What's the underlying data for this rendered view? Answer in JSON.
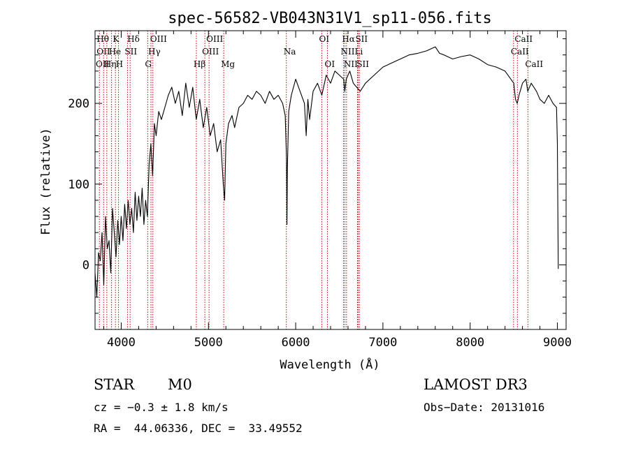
{
  "chart_data": {
    "type": "line",
    "title": "spec-56582-VB043N31V1_sp11-056.fits",
    "xlabel": "Wavelength (Å)",
    "ylabel": "Flux (relative)",
    "xlim": [
      3700,
      9100
    ],
    "ylim": [
      -80,
      290
    ],
    "x_ticks": [
      4000,
      5000,
      6000,
      7000,
      8000,
      9000
    ],
    "y_ticks": [
      0,
      100,
      200
    ],
    "grid": false,
    "series": [
      {
        "name": "flux",
        "x": [
          3700,
          3720,
          3740,
          3760,
          3780,
          3800,
          3820,
          3840,
          3860,
          3880,
          3900,
          3920,
          3940,
          3960,
          3980,
          4000,
          4020,
          4040,
          4060,
          4080,
          4100,
          4120,
          4140,
          4160,
          4180,
          4200,
          4220,
          4240,
          4260,
          4280,
          4300,
          4320,
          4340,
          4360,
          4380,
          4400,
          4430,
          4460,
          4500,
          4540,
          4580,
          4620,
          4660,
          4700,
          4740,
          4780,
          4820,
          4860,
          4900,
          4940,
          4980,
          5020,
          5060,
          5100,
          5140,
          5170,
          5185,
          5200,
          5230,
          5270,
          5300,
          5350,
          5400,
          5450,
          5500,
          5550,
          5600,
          5650,
          5700,
          5750,
          5800,
          5850,
          5880,
          5895,
          5900,
          5905,
          5920,
          5950,
          6000,
          6050,
          6100,
          6120,
          6140,
          6160,
          6200,
          6250,
          6300,
          6350,
          6400,
          6450,
          6500,
          6550,
          6563,
          6580,
          6620,
          6660,
          6700,
          6740,
          6800,
          6900,
          7000,
          7100,
          7200,
          7300,
          7400,
          7500,
          7600,
          7650,
          7700,
          7800,
          7900,
          8000,
          8100,
          8200,
          8300,
          8400,
          8500,
          8520,
          8540,
          8560,
          8600,
          8640,
          8660,
          8700,
          8760,
          8800,
          8850,
          8900,
          8950,
          8990,
          9000,
          9010
        ],
        "y": [
          -10,
          -40,
          15,
          5,
          40,
          -25,
          60,
          20,
          30,
          -10,
          70,
          40,
          10,
          55,
          25,
          60,
          30,
          75,
          45,
          80,
          50,
          70,
          40,
          90,
          55,
          85,
          60,
          95,
          50,
          80,
          60,
          125,
          150,
          110,
          175,
          160,
          190,
          180,
          195,
          210,
          220,
          200,
          215,
          185,
          225,
          195,
          220,
          180,
          205,
          170,
          195,
          160,
          175,
          140,
          155,
          100,
          80,
          150,
          175,
          185,
          170,
          195,
          200,
          210,
          205,
          215,
          210,
          200,
          215,
          205,
          210,
          200,
          185,
          130,
          50,
          120,
          190,
          210,
          230,
          215,
          200,
          160,
          205,
          180,
          215,
          225,
          210,
          235,
          225,
          240,
          235,
          230,
          215,
          230,
          240,
          225,
          220,
          215,
          225,
          235,
          245,
          250,
          255,
          260,
          262,
          265,
          270,
          262,
          260,
          255,
          258,
          260,
          255,
          248,
          245,
          240,
          225,
          205,
          200,
          210,
          225,
          230,
          215,
          225,
          215,
          205,
          200,
          210,
          200,
          195,
          150,
          -5
        ]
      }
    ],
    "line_markers": [
      {
        "wl": 3750,
        "labels": [
          "Hθ",
          "OII"
        ],
        "pos": "top"
      },
      {
        "wl": 3798,
        "labels": [
          "OII"
        ],
        "pos": "top"
      },
      {
        "wl": 3835,
        "labels": [
          "Hη"
        ],
        "pos": "top"
      },
      {
        "wl": 3889,
        "labels": [
          "He"
        ],
        "pos": "top"
      },
      {
        "wl": 3934,
        "labels": [
          "K"
        ],
        "pos": "top"
      },
      {
        "wl": 3969,
        "labels": [
          "H"
        ],
        "pos": "top"
      },
      {
        "wl": 4072,
        "labels": [
          "SII"
        ],
        "pos": "top"
      },
      {
        "wl": 4102,
        "labels": [
          "Hδ"
        ],
        "pos": "top"
      },
      {
        "wl": 4304,
        "labels": [
          "G"
        ],
        "pos": "top"
      },
      {
        "wl": 4341,
        "labels": [
          "Hγ"
        ],
        "pos": "top"
      },
      {
        "wl": 4363,
        "labels": [
          "OIII"
        ],
        "pos": "top"
      },
      {
        "wl": 4861,
        "labels": [
          "Hβ"
        ],
        "pos": "top"
      },
      {
        "wl": 4959,
        "labels": [
          "OIII"
        ],
        "pos": "top"
      },
      {
        "wl": 5007,
        "labels": [
          "OIII"
        ],
        "pos": "top"
      },
      {
        "wl": 5175,
        "labels": [
          "Mg"
        ],
        "pos": "top"
      },
      {
        "wl": 5893,
        "labels": [
          "Na"
        ],
        "pos": "top"
      },
      {
        "wl": 6300,
        "labels": [
          "OI"
        ],
        "pos": "top"
      },
      {
        "wl": 6364,
        "labels": [
          "OI"
        ],
        "pos": "top"
      },
      {
        "wl": 6548,
        "labels": [
          "NII"
        ],
        "pos": "top"
      },
      {
        "wl": 6563,
        "labels": [
          "Hα"
        ],
        "pos": "top"
      },
      {
        "wl": 6583,
        "labels": [
          "NII"
        ],
        "pos": "top"
      },
      {
        "wl": 6708,
        "labels": [
          "Li"
        ],
        "pos": "top"
      },
      {
        "wl": 6716,
        "labels": [
          "SII"
        ],
        "pos": "top"
      },
      {
        "wl": 6731,
        "labels": [
          "SII"
        ],
        "pos": "top"
      },
      {
        "wl": 8498,
        "labels": [
          "CaII"
        ],
        "pos": "top"
      },
      {
        "wl": 8542,
        "labels": [
          "CaII"
        ],
        "pos": "top"
      },
      {
        "wl": 8662,
        "labels": [
          "CaII"
        ],
        "pos": "top"
      }
    ],
    "marker_label_rows": [
      [
        {
          "text": "Hθ",
          "wl": 3750
        },
        {
          "text": "K",
          "wl": 3934
        },
        {
          "text": "Hδ",
          "wl": 4102
        },
        {
          "text": "OIII",
          "wl": 4363
        },
        {
          "text": "OIII",
          "wl": 5007
        },
        {
          "text": "OI",
          "wl": 6300
        },
        {
          "text": "Hα",
          "wl": 6563
        },
        {
          "text": "SII",
          "wl": 6716
        },
        {
          "text": "CaII",
          "wl": 8542
        }
      ],
      [
        {
          "text": "OII",
          "wl": 3750
        },
        {
          "text": "He",
          "wl": 3889
        },
        {
          "text": "SII",
          "wl": 4072
        },
        {
          "text": "Hγ",
          "wl": 4341
        },
        {
          "text": "OIII",
          "wl": 4959
        },
        {
          "text": "Na",
          "wl": 5893
        },
        {
          "text": "NII",
          "wl": 6548
        },
        {
          "text": "Li",
          "wl": 6708
        },
        {
          "text": "CaII",
          "wl": 8498
        }
      ],
      [
        {
          "text": "OII",
          "wl": 3740
        },
        {
          "text": "Hη",
          "wl": 3835
        },
        {
          "text": "H",
          "wl": 3969
        },
        {
          "text": "G",
          "wl": 4304
        },
        {
          "text": "Hβ",
          "wl": 4861
        },
        {
          "text": "Mg",
          "wl": 5175
        },
        {
          "text": "OI",
          "wl": 6364
        },
        {
          "text": "NII",
          "wl": 6583
        },
        {
          "text": "SII",
          "wl": 6731
        },
        {
          "text": "CaII",
          "wl": 8662
        }
      ]
    ]
  },
  "info": {
    "object_class": "STAR",
    "subclass": "M0",
    "survey": "LAMOST DR3",
    "cz": "cz = −0.3 ± 1.8 km/s",
    "obs_date": "Obs−Date: 20131016",
    "coords": "RA =  44.06336, DEC =  33.49552"
  },
  "colors": {
    "spectrum": "#000000",
    "marker_line": "#cc0000",
    "axis": "#000000"
  }
}
